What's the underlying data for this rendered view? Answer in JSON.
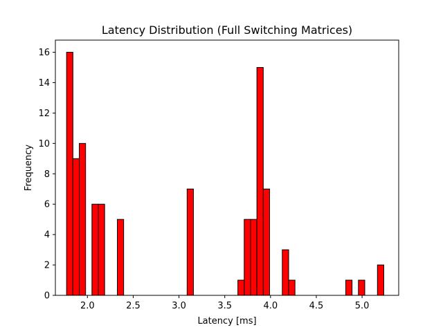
{
  "chart_data": {
    "type": "bar",
    "title": "Latency Distribution (Full Switching Matrices)",
    "xlabel": "Latency [ms]",
    "ylabel": "Frequency",
    "xlim": [
      1.65,
      5.4
    ],
    "ylim": [
      0,
      16.8
    ],
    "xticks": [
      "2.0",
      "2.5",
      "3.0",
      "3.5",
      "4.0",
      "4.5",
      "5.0"
    ],
    "yticks": [
      "0",
      "2",
      "4",
      "6",
      "8",
      "10",
      "12",
      "14",
      "16"
    ],
    "bin_width": 0.0693,
    "bins": [
      {
        "left": 1.7722,
        "count": 16
      },
      {
        "left": 1.8415,
        "count": 9
      },
      {
        "left": 1.9108,
        "count": 10
      },
      {
        "left": 2.0494,
        "count": 6
      },
      {
        "left": 2.1187,
        "count": 6
      },
      {
        "left": 2.3266,
        "count": 5
      },
      {
        "left": 3.0889,
        "count": 7
      },
      {
        "left": 3.6433,
        "count": 1
      },
      {
        "left": 3.7126,
        "count": 5
      },
      {
        "left": 3.7819,
        "count": 5
      },
      {
        "left": 3.8512,
        "count": 15
      },
      {
        "left": 3.9205,
        "count": 7
      },
      {
        "left": 4.1284,
        "count": 3
      },
      {
        "left": 4.1977,
        "count": 1
      },
      {
        "left": 4.8214,
        "count": 1
      },
      {
        "left": 4.96,
        "count": 1
      },
      {
        "left": 5.1679,
        "count": 2
      }
    ],
    "bar_color": "#ff0000",
    "edge_color": "#000000",
    "grid": false,
    "legend": "none"
  }
}
